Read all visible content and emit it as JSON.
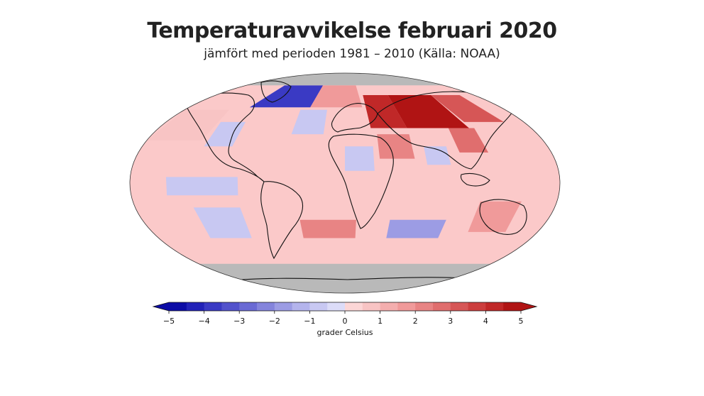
{
  "title": "Temperaturavvikelse februari 2020",
  "subtitle": "jämfört med perioden 1981 – 2010 (Källa: NOAA)",
  "colorbar": {
    "min": -5,
    "max": 5,
    "step": 0.5,
    "tick_labels": [
      "−5",
      "−4",
      "−3",
      "−2",
      "−1",
      "0",
      "1",
      "2",
      "3",
      "4",
      "5"
    ],
    "unit_label": "grader Celsius",
    "colors": [
      "#0c0ca6",
      "#2222b8",
      "#3a3ac4",
      "#5252cc",
      "#6a6ad4",
      "#8484dc",
      "#9c9ce4",
      "#b4b4ec",
      "#c8c8f2",
      "#dcdcf8",
      "#fcd6d6",
      "#f8c4c4",
      "#f4aeae",
      "#f09a9a",
      "#e88484",
      "#e06e6e",
      "#d65656",
      "#cc3e3e",
      "#c02828",
      "#b01414"
    ]
  },
  "map": {
    "background_color": "#fbc9c9",
    "nodata_color": "#b9b9b9",
    "coastline_color": "#111111",
    "regions": [
      {
        "name": "arctic-canada-greenland",
        "anomaly": -4,
        "lon": [
          -110,
          -40
        ],
        "lat": [
          62,
          80
        ]
      },
      {
        "name": "arctic-north-atlantic",
        "anomaly": 1.5,
        "lon": [
          -40,
          20
        ],
        "lat": [
          62,
          80
        ]
      },
      {
        "name": "western-russia-europe",
        "anomaly": 4,
        "lon": [
          25,
          60
        ],
        "lat": [
          45,
          72
        ]
      },
      {
        "name": "siberia-core",
        "anomaly": 5,
        "lon": [
          60,
          120
        ],
        "lat": [
          45,
          72
        ]
      },
      {
        "name": "eastern-siberia",
        "anomaly": 3,
        "lon": [
          120,
          160
        ],
        "lat": [
          50,
          72
        ]
      },
      {
        "name": "north-pacific",
        "anomaly": 0.5,
        "lon": [
          -180,
          -130
        ],
        "lat": [
          35,
          60
        ]
      },
      {
        "name": "north-america-west",
        "anomaly": -1,
        "lon": [
          -125,
          -100
        ],
        "lat": [
          30,
          50
        ]
      },
      {
        "name": "north-atlantic",
        "anomaly": -1,
        "lon": [
          -50,
          -20
        ],
        "lat": [
          40,
          60
        ]
      },
      {
        "name": "sahara",
        "anomaly": -1,
        "lon": [
          0,
          25
        ],
        "lat": [
          10,
          30
        ]
      },
      {
        "name": "middle-east",
        "anomaly": 2,
        "lon": [
          30,
          60
        ],
        "lat": [
          20,
          40
        ]
      },
      {
        "name": "india",
        "anomaly": -1,
        "lon": [
          70,
          90
        ],
        "lat": [
          15,
          30
        ]
      },
      {
        "name": "china",
        "anomaly": 2.5,
        "lon": [
          100,
          125
        ],
        "lat": [
          25,
          45
        ]
      },
      {
        "name": "equatorial-pacific-east",
        "anomaly": -1,
        "lon": [
          -150,
          -90
        ],
        "lat": [
          -10,
          5
        ]
      },
      {
        "name": "south-pacific",
        "anomaly": -1,
        "lon": [
          -130,
          -90
        ],
        "lat": [
          -45,
          -20
        ]
      },
      {
        "name": "south-atlantic",
        "anomaly": 2,
        "lon": [
          -40,
          10
        ],
        "lat": [
          -45,
          -30
        ]
      },
      {
        "name": "south-indian-ocean",
        "anomaly": -2,
        "lon": [
          40,
          90
        ],
        "lat": [
          -45,
          -30
        ]
      },
      {
        "name": "australia",
        "anomaly": 1.5,
        "lon": [
          115,
          150
        ],
        "lat": [
          -40,
          -15
        ]
      },
      {
        "name": "antarctica",
        "anomaly": null,
        "lon": [
          -180,
          180
        ],
        "lat": [
          -90,
          -66
        ]
      },
      {
        "name": "arctic-ocean",
        "anomaly": null,
        "lon": [
          -180,
          180
        ],
        "lat": [
          80,
          90
        ]
      }
    ]
  }
}
